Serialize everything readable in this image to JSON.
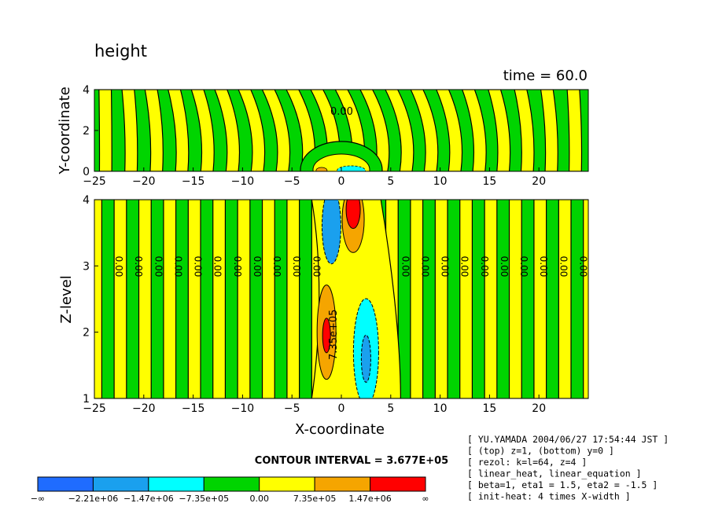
{
  "title": "height",
  "time_label": "time = 60.0",
  "contour_interval_label": "CONTOUR INTERVAL = 3.677E+05",
  "info_lines": [
    "[ YU.YAMADA 2004/06/27 17:54:44 JST ]",
    "[ (top) z=1, (bottom) y=0 ]",
    "[ rezol: k=l=64, z=4 ]",
    "[ linear_heat, linear_equation ]",
    "[ beta=1, eta1 = 1.5, eta2 = -1.5 ]",
    "[ init-heat: 4 times X-width ]"
  ],
  "colorbar": {
    "colors": [
      "#1f6cff",
      "#1aa0ee",
      "#00ffff",
      "#00d400",
      "#ffff00",
      "#f5a500",
      "#ff0000"
    ],
    "labels": [
      "-∞",
      "-2.21e+06",
      "-1.47e+06",
      "-7.35e+05",
      "0.00",
      "7.35e+05",
      "1.47e+06",
      "∞"
    ]
  },
  "chart_data": [
    {
      "type": "contour",
      "panel": "top",
      "ylabel": "Y-coordinate",
      "xlim": [
        -25,
        25
      ],
      "ylim": [
        0,
        4
      ],
      "x_ticks": [
        -25,
        -20,
        -15,
        -10,
        -5,
        0,
        5,
        10,
        15,
        20
      ],
      "y_ticks": [
        0,
        2,
        4
      ],
      "contour_labels": [
        "0.00"
      ]
    },
    {
      "type": "contour",
      "panel": "bottom",
      "xlabel": "X-coordinate",
      "ylabel": "Z-level",
      "xlim": [
        -25,
        25
      ],
      "ylim": [
        1,
        4
      ],
      "x_ticks": [
        -25,
        -20,
        -15,
        -10,
        -5,
        0,
        5,
        10,
        15,
        20
      ],
      "y_ticks": [
        1,
        2,
        3,
        4
      ],
      "contour_labels": [
        "0.00",
        "7.35e+05"
      ]
    }
  ]
}
